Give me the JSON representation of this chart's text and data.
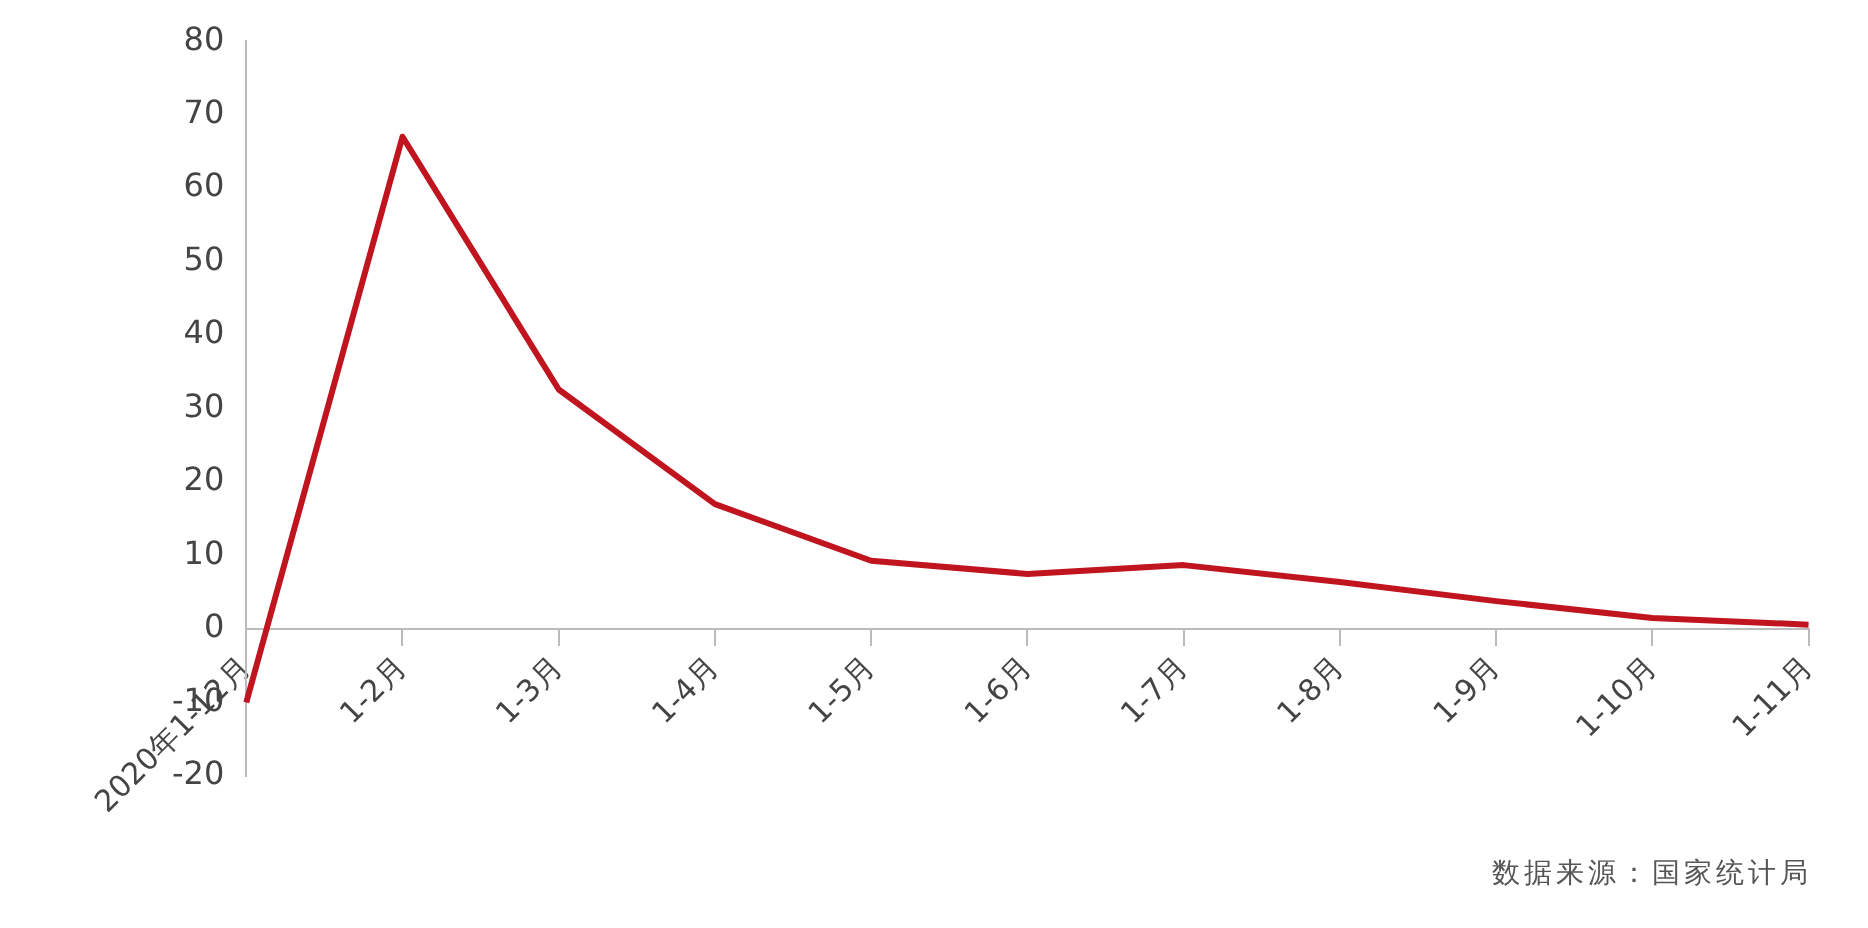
{
  "chart_data": {
    "type": "line",
    "categories": [
      "2020年1-12月",
      "1-2月",
      "1-3月",
      "1-4月",
      "1-5月",
      "1-6月",
      "1-7月",
      "1-8月",
      "1-9月",
      "1-10月",
      "1-11月"
    ],
    "series": [
      {
        "color": "#c0141e",
        "values": [
          -10,
          67,
          32.6,
          17,
          9.3,
          7.5,
          8.7,
          6.4,
          3.8,
          1.5,
          0.6
        ]
      }
    ],
    "ylim": [
      -20,
      80
    ],
    "yticks": [
      -20,
      -10,
      0,
      10,
      20,
      30,
      40,
      50,
      60,
      70,
      80
    ],
    "grid": false,
    "legend": false,
    "marker": "none",
    "line_style": "solid",
    "annotations": [
      "数据来源：国家统计局"
    ]
  }
}
